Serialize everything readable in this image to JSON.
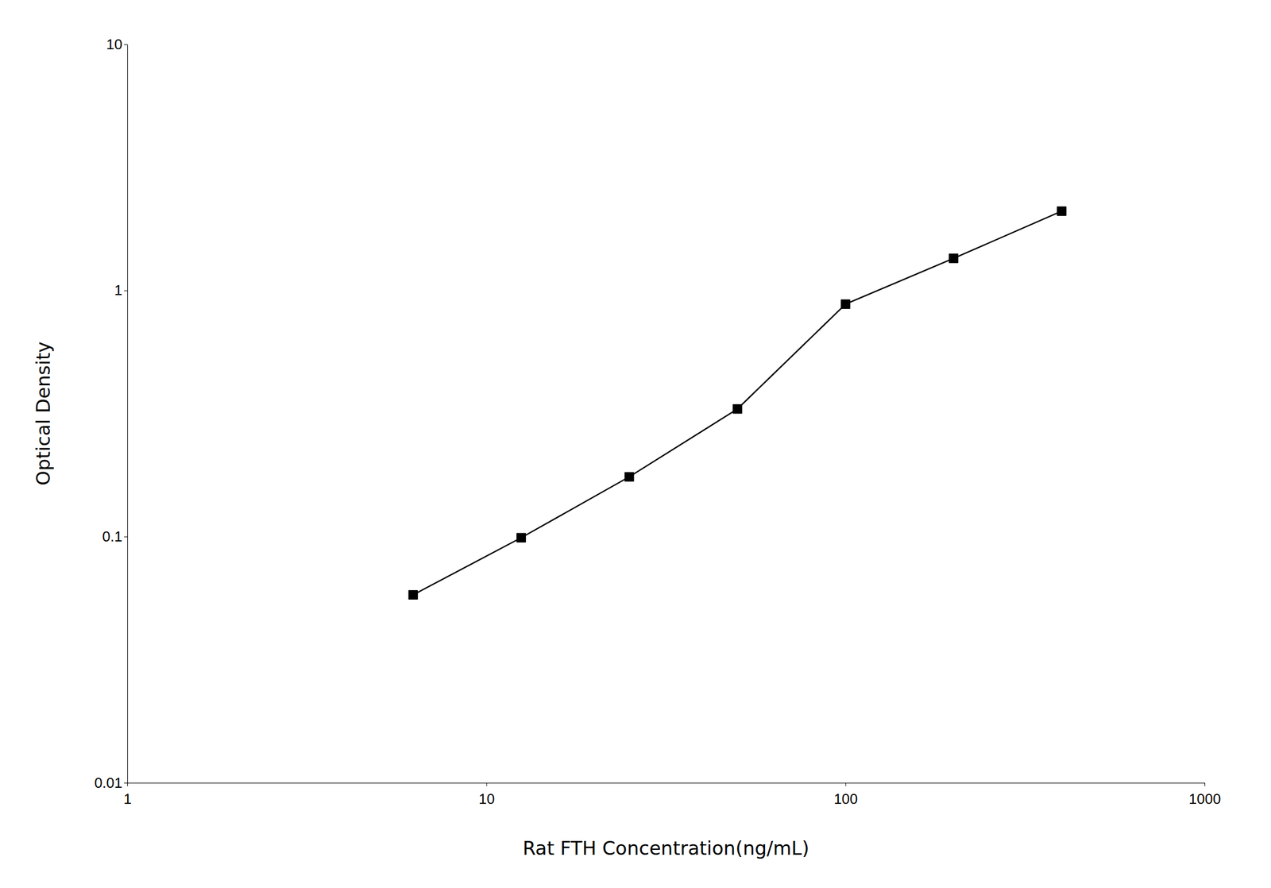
{
  "chart_data": {
    "type": "line",
    "x": [
      6.25,
      12.5,
      25,
      50,
      100,
      200,
      400
    ],
    "values": [
      0.058,
      0.099,
      0.175,
      0.33,
      0.88,
      1.35,
      2.1
    ],
    "xlabel": "Rat FTH Concentration(ng/mL)",
    "ylabel": "Optical Density",
    "xlim": [
      1,
      1000
    ],
    "ylim": [
      0.01,
      10
    ],
    "xticks": [
      1,
      10,
      100,
      1000
    ],
    "yticks": [
      0.01,
      0.1,
      1,
      10
    ],
    "log": true,
    "color": "#000000",
    "marker": "square"
  }
}
